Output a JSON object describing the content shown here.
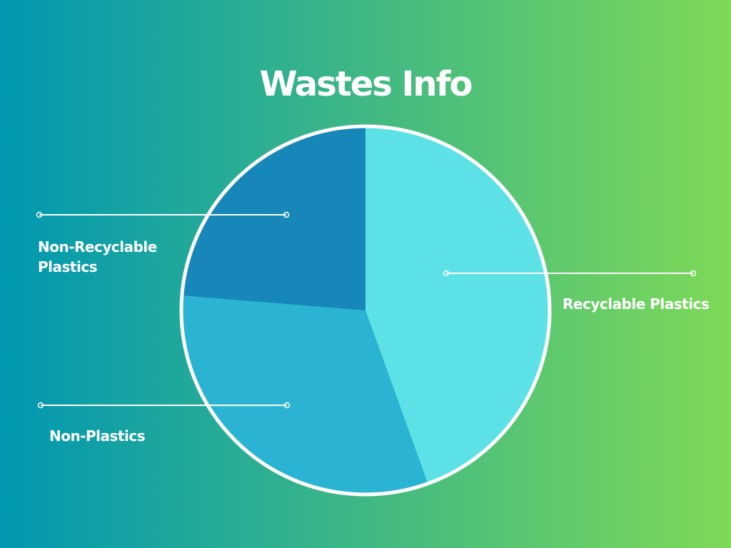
{
  "title": "Wastes Info",
  "chart_data": {
    "type": "pie",
    "title": "Wastes Info",
    "slices": [
      {
        "label": "Recyclable Plastics",
        "value": 44.5,
        "color": "#5CE1E6"
      },
      {
        "label": "Non-Plastics",
        "value": 31.8,
        "color": "#2BB3D4"
      },
      {
        "label": "Non-Recyclable Plastics",
        "value": 23.7,
        "color": "#1786B8"
      }
    ],
    "start_angle_deg": 0,
    "direction": "clockwise",
    "legend": "callouts"
  },
  "colors": {
    "background_start": "#0097B2",
    "background_end": "#7ED957",
    "outline": "#FFFFFF",
    "text": "#FFFFFF"
  }
}
